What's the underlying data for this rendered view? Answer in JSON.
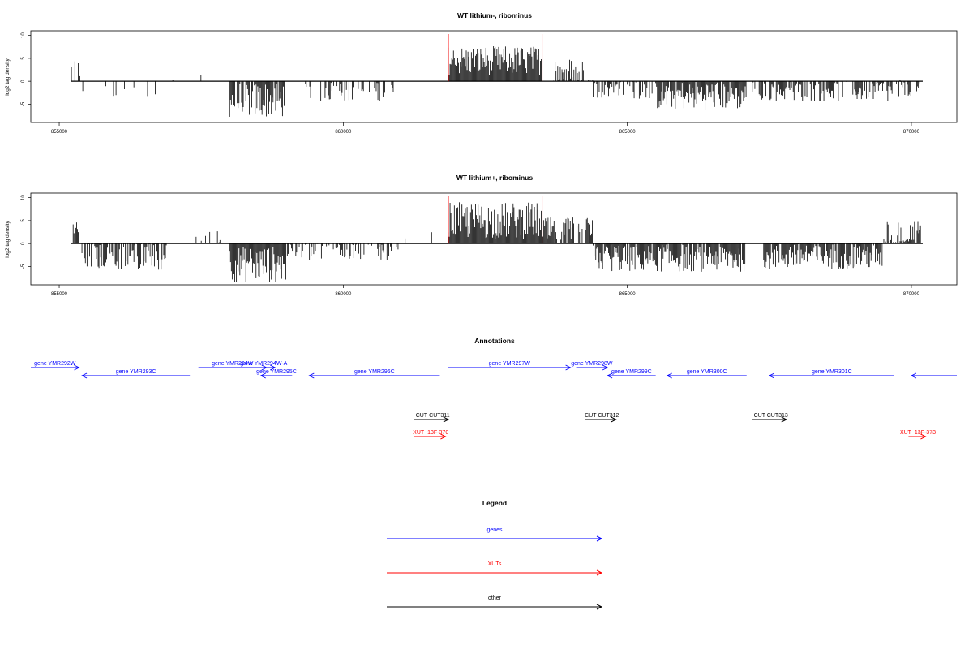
{
  "chart_data": [
    {
      "type": "bar",
      "title": "WT lithium-, ribominus",
      "xlabel": "",
      "ylabel": "log2 tag density",
      "xlim": [
        854500,
        870800
      ],
      "ylim": [
        -9,
        11
      ],
      "x_ticks": [
        "855000",
        "860000",
        "865000",
        "870000"
      ],
      "y_ticks": [
        "-5",
        "0",
        "5",
        "10"
      ],
      "markers_x": [
        861850,
        863500
      ],
      "segments": [
        {
          "start": 855200,
          "end": 855400,
          "mean": 2.5,
          "amp": 1.5,
          "dens": 0.5
        },
        {
          "start": 855400,
          "end": 856800,
          "mean": -2.0,
          "amp": 1.5,
          "dens": 0.12
        },
        {
          "start": 857000,
          "end": 857600,
          "mean": 1.0,
          "amp": 1.0,
          "dens": 0.08
        },
        {
          "start": 857600,
          "end": 858000,
          "mean": 0.0,
          "amp": 0.5,
          "dens": 0.0
        },
        {
          "start": 858000,
          "end": 859000,
          "mean": -4.0,
          "amp": 2.5,
          "dens": 0.9
        },
        {
          "start": 859200,
          "end": 861000,
          "mean": -2.0,
          "amp": 1.5,
          "dens": 0.4
        },
        {
          "start": 861850,
          "end": 863500,
          "mean": 4.5,
          "amp": 2.0,
          "dens": 1.0
        },
        {
          "start": 863700,
          "end": 864400,
          "mean": 2.0,
          "amp": 2.0,
          "dens": 0.6
        },
        {
          "start": 864400,
          "end": 865500,
          "mean": -1.5,
          "amp": 1.5,
          "dens": 0.5
        },
        {
          "start": 865500,
          "end": 867100,
          "mean": -3.0,
          "amp": 2.0,
          "dens": 1.0
        },
        {
          "start": 867200,
          "end": 870200,
          "mean": -2.0,
          "amp": 1.5,
          "dens": 0.7
        },
        {
          "start": 869500,
          "end": 869900,
          "mean": 1.5,
          "amp": 1.5,
          "dens": 0.1
        }
      ]
    },
    {
      "type": "bar",
      "title": "WT lithium+, ribominus",
      "xlabel": "",
      "ylabel": "log2 tag density",
      "xlim": [
        854500,
        870800
      ],
      "ylim": [
        -9,
        11
      ],
      "x_ticks": [
        "855000",
        "860000",
        "865000",
        "870000"
      ],
      "y_ticks": [
        "-5",
        "0",
        "5",
        "10"
      ],
      "markers_x": [
        861850,
        863500
      ],
      "segments": [
        {
          "start": 855200,
          "end": 855400,
          "mean": 1.5,
          "amp": 2.0,
          "dens": 0.5
        },
        {
          "start": 855400,
          "end": 856900,
          "mean": -2.5,
          "amp": 2.0,
          "dens": 0.8
        },
        {
          "start": 856900,
          "end": 858000,
          "mean": 0.8,
          "amp": 1.2,
          "dens": 0.12
        },
        {
          "start": 858000,
          "end": 859000,
          "mean": -4.5,
          "amp": 2.5,
          "dens": 1.0
        },
        {
          "start": 859000,
          "end": 861000,
          "mean": -1.5,
          "amp": 1.5,
          "dens": 0.5
        },
        {
          "start": 861000,
          "end": 861600,
          "mean": 1.0,
          "amp": 1.0,
          "dens": 0.12
        },
        {
          "start": 861850,
          "end": 863500,
          "mean": 5.0,
          "amp": 2.5,
          "dens": 1.0
        },
        {
          "start": 863500,
          "end": 864400,
          "mean": 2.5,
          "amp": 2.0,
          "dens": 0.8
        },
        {
          "start": 864400,
          "end": 867100,
          "mean": -3.0,
          "amp": 2.0,
          "dens": 1.0
        },
        {
          "start": 867100,
          "end": 867400,
          "mean": 0.0,
          "amp": 0.5,
          "dens": 0.0
        },
        {
          "start": 867400,
          "end": 869500,
          "mean": -2.5,
          "amp": 2.0,
          "dens": 1.0
        },
        {
          "start": 869500,
          "end": 870200,
          "mean": 1.0,
          "amp": 2.5,
          "dens": 0.7
        }
      ]
    }
  ],
  "annotations": {
    "title": "Annotations",
    "items": [
      {
        "label": "gene YMR292W",
        "start": 854500,
        "end": 855350,
        "dir": "right",
        "color": "#0000FF",
        "row": 0
      },
      {
        "label": "gene YMR293C",
        "start": 855400,
        "end": 857300,
        "dir": "left",
        "color": "#0000FF",
        "row": 1
      },
      {
        "label": "gene YMR294W",
        "start": 857450,
        "end": 858650,
        "dir": "right",
        "color": "#0000FF",
        "row": 0
      },
      {
        "label": "gene YMR294W-A",
        "start": 858400,
        "end": 858800,
        "dir": "right",
        "color": "#0000FF",
        "row": 0
      },
      {
        "label": "gene YMR295C",
        "start": 858550,
        "end": 859100,
        "dir": "left",
        "color": "#0000FF",
        "row": 1
      },
      {
        "label": "gene YMR296C",
        "start": 859400,
        "end": 861700,
        "dir": "left",
        "color": "#0000FF",
        "row": 1
      },
      {
        "label": "gene YMR297W",
        "start": 861850,
        "end": 864000,
        "dir": "right",
        "color": "#0000FF",
        "row": 0
      },
      {
        "label": "gene YMR298W",
        "start": 864100,
        "end": 864650,
        "dir": "right",
        "color": "#0000FF",
        "row": 0
      },
      {
        "label": "gene YMR299C",
        "start": 864650,
        "end": 865500,
        "dir": "left",
        "color": "#0000FF",
        "row": 1
      },
      {
        "label": "gene YMR300C",
        "start": 865700,
        "end": 867100,
        "dir": "left",
        "color": "#0000FF",
        "row": 1
      },
      {
        "label": "gene YMR301C",
        "start": 867500,
        "end": 869700,
        "dir": "left",
        "color": "#0000FF",
        "row": 1
      },
      {
        "label": "",
        "start": 870000,
        "end": 870800,
        "dir": "left",
        "color": "#0000FF",
        "row": 1
      },
      {
        "label": "CUT",
        "start": 861250,
        "end": 861850,
        "dir": "right",
        "color": "#000000",
        "row": 3
      },
      {
        "label": "CUT311",
        "start": 861250,
        "end": 861850,
        "dir": "right",
        "color": "#000000",
        "row": 3
      },
      {
        "label": "CUT",
        "start": 864250,
        "end": 864800,
        "dir": "right",
        "color": "#000000",
        "row": 3
      },
      {
        "label": "CUT312",
        "start": 864250,
        "end": 864800,
        "dir": "right",
        "color": "#000000",
        "row": 3
      },
      {
        "label": "CUT",
        "start": 867200,
        "end": 867800,
        "dir": "right",
        "color": "#000000",
        "row": 3
      },
      {
        "label": "CUT313",
        "start": 867200,
        "end": 867800,
        "dir": "right",
        "color": "#000000",
        "row": 3
      },
      {
        "label": "XUT",
        "start": 861250,
        "end": 861800,
        "dir": "right",
        "color": "#FF0000",
        "row": 4
      },
      {
        "label": "13F-370",
        "start": 861250,
        "end": 861800,
        "dir": "right",
        "color": "#FF0000",
        "row": 4
      },
      {
        "label": "XUT",
        "start": 869950,
        "end": 870250,
        "dir": "right",
        "color": "#FF0000",
        "row": 4
      },
      {
        "label": "13F-373",
        "start": 869950,
        "end": 870250,
        "dir": "right",
        "color": "#FF0000",
        "row": 4
      }
    ]
  },
  "legend": {
    "title": "Legend",
    "items": [
      {
        "label": "genes",
        "color": "#0000FF"
      },
      {
        "label": "XUTs",
        "color": "#FF0000"
      },
      {
        "label": "other",
        "color": "#000000"
      }
    ]
  }
}
